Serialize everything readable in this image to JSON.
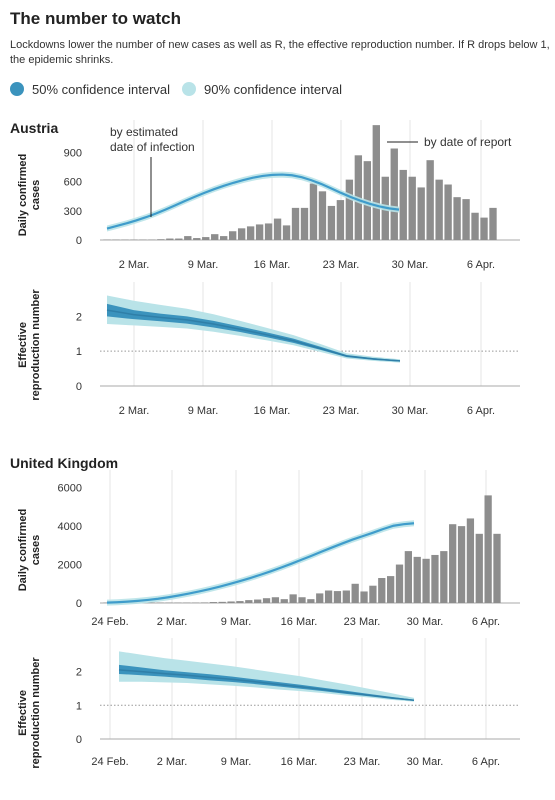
{
  "header": {
    "title": "The number to watch",
    "subtitle": "Lockdowns lower the number of new cases as well as R, the effective reproduction number. If R drops below 1, the epidemic shrinks."
  },
  "legend": {
    "ci50_label": "50% confidence interval",
    "ci90_label": "90% confidence interval"
  },
  "colors": {
    "ci50": "#3b93bd",
    "ci90": "#b9e3e8",
    "line": "#3f9ccb",
    "bar": "#8d8d8d"
  },
  "chart_data": [
    {
      "country": "Austria",
      "type": "bar",
      "title": "Austria",
      "ylabel": "Daily confirmed cases",
      "ylim": [
        0,
        1130
      ],
      "yticks": [
        "0",
        "300",
        "600",
        "900"
      ],
      "xticks": [
        "2 Mar.",
        "9 Mar.",
        "16 Mar.",
        "23 Mar.",
        "30 Mar.",
        "6 Apr."
      ],
      "annotations": [
        "by estimated date of infection",
        "by date of report"
      ],
      "series": [
        {
          "name": "by date of report",
          "type": "bar",
          "values": [
            0,
            1,
            2,
            2,
            5,
            5,
            8,
            15,
            15,
            40,
            20,
            30,
            60,
            40,
            90,
            120,
            140,
            160,
            170,
            220,
            150,
            330,
            330,
            580,
            500,
            350,
            410,
            620,
            870,
            810,
            1180,
            650,
            940,
            720,
            650,
            540,
            820,
            620,
            570,
            440,
            420,
            280,
            230,
            330
          ]
        },
        {
          "name": "by estimated date of infection",
          "type": "line",
          "values": [
            118,
            144,
            171,
            201,
            234,
            271,
            312,
            356,
            401,
            443,
            484,
            522,
            557,
            588,
            616,
            640,
            658,
            669,
            672,
            665,
            645,
            614,
            576,
            532,
            486,
            443,
            405,
            372,
            345,
            325,
            312
          ]
        }
      ]
    },
    {
      "country": "Austria",
      "type": "line",
      "ylabel": "Effective reproduction number",
      "ylim": [
        0,
        2.7
      ],
      "yticks": [
        "0",
        "1",
        "2"
      ],
      "xticks": [
        "2 Mar.",
        "9 Mar.",
        "16 Mar.",
        "23 Mar.",
        "30 Mar.",
        "6 Apr."
      ],
      "series": [
        {
          "name": "median",
          "values": [
            2.18,
            2.05,
            1.97,
            1.9,
            1.78,
            1.63,
            1.47,
            1.3,
            1.08,
            0.86,
            0.78,
            0.72
          ]
        },
        {
          "name": "50% confidence interval",
          "lower": [
            2.0,
            1.92,
            1.86,
            1.79,
            1.68,
            1.55,
            1.4,
            1.24,
            1.04,
            0.83,
            0.75,
            0.7
          ],
          "upper": [
            2.36,
            2.18,
            2.08,
            2.0,
            1.87,
            1.71,
            1.54,
            1.36,
            1.13,
            0.89,
            0.8,
            0.74
          ]
        },
        {
          "name": "90% confidence interval",
          "lower": [
            1.78,
            1.74,
            1.7,
            1.65,
            1.56,
            1.44,
            1.31,
            1.17,
            0.98,
            0.79,
            0.72,
            0.67
          ],
          "upper": [
            2.6,
            2.45,
            2.33,
            2.22,
            2.06,
            1.87,
            1.67,
            1.46,
            1.21,
            0.94,
            0.84,
            0.77
          ]
        }
      ]
    },
    {
      "country": "United Kingdom",
      "type": "bar",
      "title": "United Kingdom",
      "ylabel": "Daily confirmed cases",
      "ylim": [
        0,
        6400
      ],
      "yticks": [
        "0",
        "2000",
        "4000",
        "6000"
      ],
      "xticks": [
        "24 Feb.",
        "2 Mar.",
        "9 Mar.",
        "16 Mar.",
        "23 Mar.",
        "30 Mar.",
        "6 Apr."
      ],
      "series": [
        {
          "name": "by date of report",
          "type": "bar",
          "values": [
            0,
            0,
            0,
            2,
            5,
            5,
            10,
            10,
            15,
            20,
            25,
            30,
            50,
            60,
            80,
            100,
            150,
            180,
            250,
            300,
            200,
            450,
            300,
            200,
            500,
            650,
            620,
            650,
            1000,
            600,
            900,
            1300,
            1400,
            2000,
            2700,
            2400,
            2300,
            2500,
            2700,
            4100,
            4000,
            4400,
            3600,
            5600,
            3600
          ]
        },
        {
          "name": "by estimated date of infection",
          "type": "line",
          "values": [
            20,
            40,
            70,
            110,
            160,
            220,
            300,
            390,
            490,
            600,
            720,
            850,
            990,
            1140,
            1300,
            1470,
            1650,
            1840,
            2040,
            2250,
            2460,
            2680,
            2890,
            3100,
            3300,
            3480,
            3660,
            3850,
            4020,
            4100,
            4150
          ]
        }
      ]
    },
    {
      "country": "United Kingdom",
      "type": "line",
      "ylabel": "Effective reproduction number",
      "ylim": [
        0,
        2.7
      ],
      "yticks": [
        "0",
        "1",
        "2"
      ],
      "xticks": [
        "24 Feb.",
        "2 Mar.",
        "9 Mar.",
        "16 Mar.",
        "23 Mar.",
        "30 Mar.",
        "6 Apr."
      ],
      "series": [
        {
          "name": "median",
          "values": [
            2.05,
            2.0,
            1.94,
            1.89,
            1.83,
            1.77,
            1.7,
            1.62,
            1.55,
            1.47,
            1.38,
            1.3,
            1.22,
            1.15
          ]
        },
        {
          "name": "50% confidence interval",
          "lower": [
            1.93,
            1.89,
            1.85,
            1.8,
            1.74,
            1.69,
            1.63,
            1.56,
            1.49,
            1.42,
            1.34,
            1.27,
            1.19,
            1.13
          ],
          "upper": [
            2.2,
            2.12,
            2.04,
            1.98,
            1.92,
            1.85,
            1.77,
            1.69,
            1.61,
            1.52,
            1.43,
            1.34,
            1.25,
            1.17
          ]
        },
        {
          "name": "90% confidence interval",
          "lower": [
            1.7,
            1.7,
            1.68,
            1.66,
            1.62,
            1.58,
            1.53,
            1.47,
            1.42,
            1.36,
            1.29,
            1.23,
            1.16,
            1.11
          ],
          "upper": [
            2.6,
            2.5,
            2.4,
            2.32,
            2.24,
            2.16,
            2.06,
            1.96,
            1.86,
            1.74,
            1.62,
            1.49,
            1.36,
            1.22
          ]
        }
      ]
    }
  ]
}
